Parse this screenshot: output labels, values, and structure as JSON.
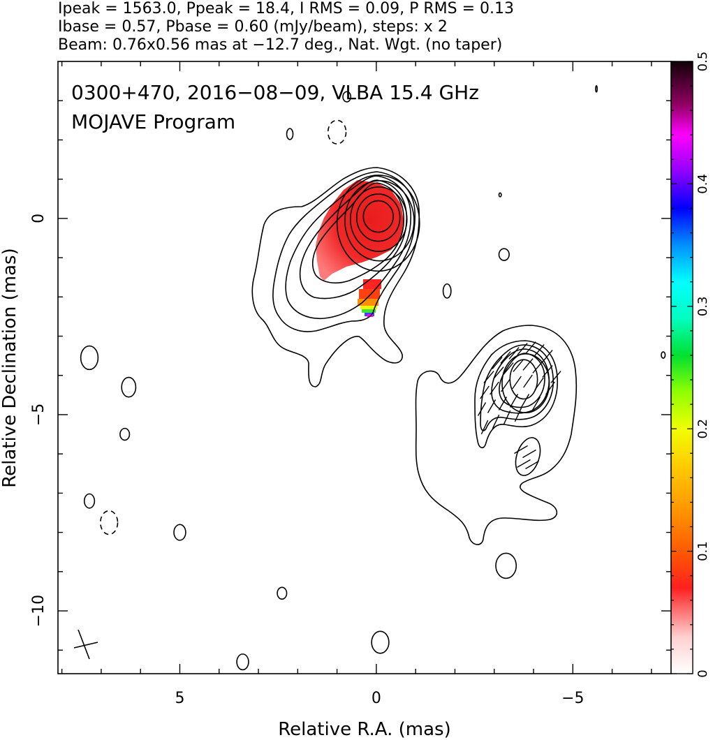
{
  "chart_data": {
    "type": "contour",
    "header_lines": [
      "Ipeak = 1563.0, Ppeak = 18.4, I RMS = 0.09, P RMS = 0.13",
      "Ibase = 0.57, Pbase = 0.60 (mJy/beam), steps: x 2",
      "Beam: 0.76x0.56 mas at −12.7 deg., Nat. Wgt. (no taper)"
    ],
    "title": "0300+470, 2016−08−09, VLBA 15.4 GHz",
    "subtitle": "MOJAVE Program",
    "xlabel": "Relative R.A. (mas)",
    "ylabel": "Relative Declination (mas)",
    "xlim": [
      8.1,
      -7.5
    ],
    "ylim": [
      -11.6,
      4.0
    ],
    "x_ticks": [
      {
        "value": 5,
        "label": "5"
      },
      {
        "value": 0,
        "label": "0"
      },
      {
        "value": -5,
        "label": "−5"
      }
    ],
    "y_ticks": [
      {
        "value": 0,
        "label": "0"
      },
      {
        "value": -5,
        "label": "−5"
      },
      {
        "value": -10,
        "label": "−10"
      }
    ],
    "colorbar": {
      "range": [
        0,
        0.5
      ],
      "ticks": [
        {
          "value": 0,
          "label": "0"
        },
        {
          "value": 0.1,
          "label": "0.1"
        },
        {
          "value": 0.2,
          "label": "0.2"
        },
        {
          "value": 0.3,
          "label": "0.3"
        },
        {
          "value": 0.4,
          "label": "0.4"
        },
        {
          "value": 0.5,
          "label": "0.5"
        }
      ]
    },
    "core_contours": [
      {
        "cx": -0.05,
        "cy": 0.05,
        "rx": 0.38,
        "ry": 0.4
      },
      {
        "cx": -0.05,
        "cy": 0.02,
        "rx": 0.55,
        "ry": 0.6
      },
      {
        "cx": -0.06,
        "cy": -0.02,
        "rx": 0.72,
        "ry": 0.82
      },
      {
        "cx": -0.08,
        "cy": -0.06,
        "rx": 0.88,
        "ry": 1.02
      },
      {
        "cx": -0.05,
        "cy": -0.12,
        "rx": 1.05,
        "ry": 1.22
      }
    ],
    "knot_contours": [
      {
        "cx": -3.75,
        "cy": -4.1,
        "rx": 0.35,
        "ry": 0.5
      },
      {
        "cx": -3.8,
        "cy": -4.2,
        "rx": 0.6,
        "ry": 0.75
      }
    ],
    "isolated_contours": [
      {
        "cx": 7.3,
        "cy": -3.55,
        "rx": 0.22,
        "ry": 0.3,
        "dashed": false
      },
      {
        "cx": 6.3,
        "cy": -4.3,
        "rx": 0.18,
        "ry": 0.25,
        "dashed": false
      },
      {
        "cx": 6.4,
        "cy": -5.5,
        "rx": 0.12,
        "ry": 0.15,
        "dashed": false
      },
      {
        "cx": 7.3,
        "cy": -7.2,
        "rx": 0.13,
        "ry": 0.18,
        "dashed": false
      },
      {
        "cx": 6.8,
        "cy": -7.75,
        "rx": 0.22,
        "ry": 0.3,
        "dashed": true
      },
      {
        "cx": 5.0,
        "cy": -8.0,
        "rx": 0.15,
        "ry": 0.2,
        "dashed": false
      },
      {
        "cx": 2.4,
        "cy": -9.55,
        "rx": 0.12,
        "ry": 0.15,
        "dashed": false
      },
      {
        "cx": 3.4,
        "cy": -11.3,
        "rx": 0.15,
        "ry": 0.2,
        "dashed": false
      },
      {
        "cx": -0.1,
        "cy": -10.8,
        "rx": 0.22,
        "ry": 0.28,
        "dashed": false
      },
      {
        "cx": 1.0,
        "cy": 2.2,
        "rx": 0.23,
        "ry": 0.3,
        "dashed": true
      },
      {
        "cx": 0.75,
        "cy": 3.1,
        "rx": 0.1,
        "ry": 0.13,
        "dashed": false
      },
      {
        "cx": 2.2,
        "cy": 2.15,
        "rx": 0.08,
        "ry": 0.14,
        "dashed": false
      },
      {
        "cx": -3.25,
        "cy": -0.92,
        "rx": 0.13,
        "ry": 0.15,
        "dashed": false
      },
      {
        "cx": -1.8,
        "cy": -1.85,
        "rx": 0.1,
        "ry": 0.18,
        "dashed": false
      },
      {
        "cx": -3.3,
        "cy": -8.85,
        "rx": 0.26,
        "ry": 0.32,
        "dashed": false
      },
      {
        "cx": -7.3,
        "cy": -3.48,
        "rx": 0.05,
        "ry": 0.08,
        "dashed": false
      },
      {
        "cx": -5.6,
        "cy": 3.3,
        "rx": 0.02,
        "ry": 0.08,
        "dashed": false
      },
      {
        "cx": -3.15,
        "cy": 0.6,
        "rx": 0.03,
        "ry": 0.05,
        "dashed": false
      }
    ],
    "beam": {
      "x": 7.5,
      "y": -10.8,
      "major": 0.76,
      "minor": 0.56,
      "pa": -12.7
    }
  }
}
